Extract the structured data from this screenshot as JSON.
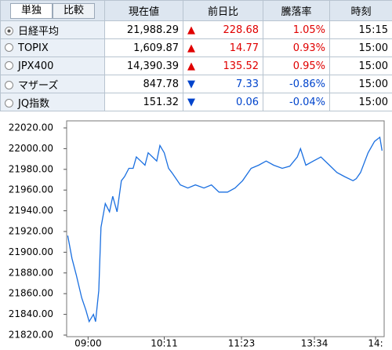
{
  "tabs": [
    "単独",
    "比較"
  ],
  "selected_tab": 0,
  "columns": [
    "現在値",
    "前日比",
    "騰落率",
    "時刻"
  ],
  "selected_row": 0,
  "rows": [
    {
      "name": "日経平均",
      "price": "21,988.29",
      "arrow": "▲",
      "change": "228.68",
      "pct": "1.05%",
      "time": "15:15",
      "color": "#e00000"
    },
    {
      "name": "TOPIX",
      "price": "1,609.87",
      "arrow": "▲",
      "change": "14.77",
      "pct": "0.93%",
      "time": "15:00",
      "color": "#e00000"
    },
    {
      "name": "JPX400",
      "price": "14,390.39",
      "arrow": "▲",
      "change": "135.52",
      "pct": "0.95%",
      "time": "15:00",
      "color": "#e00000"
    },
    {
      "name": "マザーズ",
      "price": "847.78",
      "arrow": "▼",
      "change": "7.33",
      "pct": "-0.86%",
      "time": "15:00",
      "color": "#0044cc"
    },
    {
      "name": "JQ指数",
      "price": "151.32",
      "arrow": "▼",
      "change": "0.06",
      "pct": "-0.04%",
      "time": "15:00",
      "color": "#0044cc"
    }
  ],
  "chart_data": {
    "type": "line",
    "color": "#1a6fe0",
    "x": [
      -19,
      -15,
      -11,
      -6,
      -2,
      1,
      5,
      7,
      10,
      11,
      12,
      16,
      20,
      23,
      27,
      31,
      34,
      38,
      42,
      45,
      49,
      53,
      56,
      60,
      64,
      67,
      71,
      75,
      78,
      86,
      93,
      100,
      108,
      115,
      122,
      130,
      137,
      144,
      152,
      159,
      166,
      173,
      181,
      188,
      195,
      198,
      203,
      210,
      217,
      225,
      232,
      239,
      247,
      250,
      254,
      261,
      267,
      272,
      274
    ],
    "values": [
      21916,
      21894,
      21878,
      21856,
      21844,
      21833,
      21840,
      21833,
      21863,
      21894,
      21924,
      21947,
      21939,
      21954,
      21939,
      21969,
      21973,
      21981,
      21981,
      21992,
      21988,
      21984,
      21996,
      21992,
      21988,
      22003,
      21996,
      21981,
      21977,
      21965,
      21962,
      21965,
      21962,
      21965,
      21958,
      21958,
      21962,
      21969,
      21981,
      21984,
      21988,
      21984,
      21981,
      21983,
      21992,
      22000,
      21984,
      21988,
      21992,
      21984,
      21977,
      21973,
      21969,
      21971,
      21977,
      21996,
      22007,
      22011,
      21998
    ],
    "xlim": [
      -20,
      276
    ],
    "ylim": [
      21820,
      22020
    ],
    "xticks": [
      {
        "value": 0,
        "label": "09:00"
      },
      {
        "value": 71,
        "label": "10:11"
      },
      {
        "value": 143,
        "label": "11:23"
      },
      {
        "value": 211,
        "label": "13:34"
      },
      {
        "value": 268,
        "label": "14:"
      }
    ],
    "yticks": [
      {
        "value": 21820,
        "label": "21820.00"
      },
      {
        "value": 21840,
        "label": "21840.00"
      },
      {
        "value": 21860,
        "label": "21860.00"
      },
      {
        "value": 21880,
        "label": "21880.00"
      },
      {
        "value": 21900,
        "label": "21900.00"
      },
      {
        "value": 21920,
        "label": "21920.00"
      },
      {
        "value": 21940,
        "label": "21940.00"
      },
      {
        "value": 21960,
        "label": "21960.00"
      },
      {
        "value": 21980,
        "label": "21980.00"
      },
      {
        "value": 22000,
        "label": "22000.00"
      },
      {
        "value": 22020,
        "label": "22020.00"
      }
    ]
  }
}
